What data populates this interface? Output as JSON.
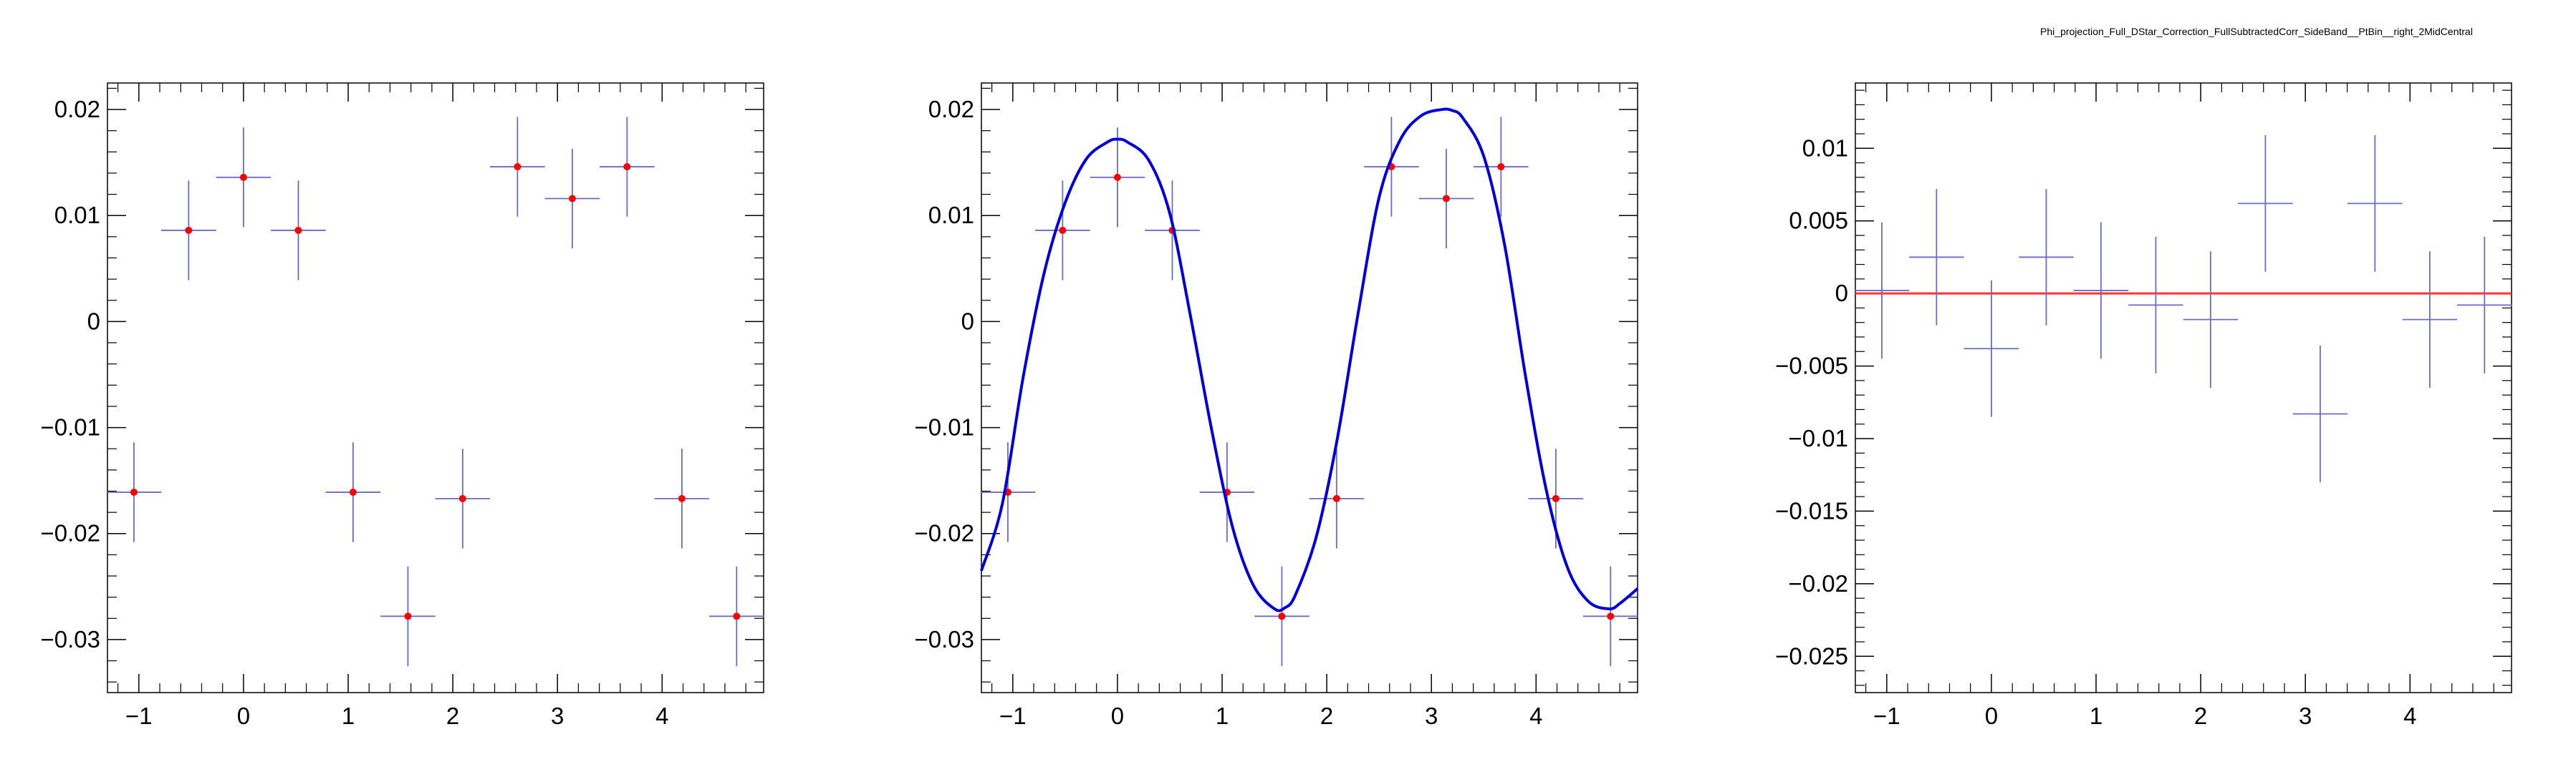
{
  "page_title": "Phi_projection_Full_DStar_Correction_FullSubtractedCorr_SideBand__PtBin__right_2MidCentral",
  "colors": {
    "axis": "#000000",
    "data_marker": "#ff0000",
    "error_bar": "#6a6acc",
    "fit_curve": "#0000dd",
    "zero_line": "#ff3333"
  },
  "chart_data": [
    {
      "type": "scatter",
      "title": "",
      "xlabel": "",
      "ylabel": "",
      "xlim": [
        -1.3,
        4.97
      ],
      "ylim": [
        -0.035,
        0.0225
      ],
      "xticks": [
        -1,
        0,
        1,
        2,
        3,
        4
      ],
      "xtick_labels": [
        "−1",
        "0",
        "1",
        "2",
        "3",
        "4"
      ],
      "yticks": [
        -0.03,
        -0.02,
        -0.01,
        0,
        0.01,
        0.02
      ],
      "ytick_labels": [
        "−0.03",
        "−0.02",
        "−0.01",
        "0",
        "0.01",
        "0.02"
      ],
      "series": [
        {
          "x": [
            -1.047,
            -0.524,
            0.0,
            0.524,
            1.047,
            1.571,
            2.094,
            2.618,
            3.142,
            3.665,
            4.189,
            4.712
          ],
          "y": [
            -0.0161,
            0.0086,
            0.0136,
            0.0086,
            -0.0161,
            -0.0278,
            -0.0167,
            0.0146,
            0.0116,
            0.0146,
            -0.0167,
            -0.0278
          ],
          "xerr": 0.262,
          "yerr": [
            0.0047,
            0.0047,
            0.0047,
            0.0047,
            0.0047,
            0.0047,
            0.0047,
            0.0047,
            0.0047,
            0.0047,
            0.0047,
            0.0047
          ]
        }
      ]
    },
    {
      "type": "scatter",
      "title": "",
      "xlabel": "",
      "ylabel": "",
      "xlim": [
        -1.3,
        4.97
      ],
      "ylim": [
        -0.035,
        0.0225
      ],
      "xticks": [
        -1,
        0,
        1,
        2,
        3,
        4
      ],
      "xtick_labels": [
        "−1",
        "0",
        "1",
        "2",
        "3",
        "4"
      ],
      "yticks": [
        -0.03,
        -0.02,
        -0.01,
        0,
        0.01,
        0.02
      ],
      "ytick_labels": [
        "−0.03",
        "−0.02",
        "−0.01",
        "0",
        "0.01",
        "0.02"
      ],
      "series": [
        {
          "x": [
            -1.047,
            -0.524,
            0.0,
            0.524,
            1.047,
            1.571,
            2.094,
            2.618,
            3.142,
            3.665,
            4.189,
            4.712
          ],
          "y": [
            -0.0161,
            0.0086,
            0.0136,
            0.0086,
            -0.0161,
            -0.0278,
            -0.0167,
            0.0146,
            0.0116,
            0.0146,
            -0.0167,
            -0.0278
          ],
          "xerr": 0.262,
          "yerr": [
            0.0047,
            0.0047,
            0.0047,
            0.0047,
            0.0047,
            0.0047,
            0.0047,
            0.0047,
            0.0047,
            0.0047,
            0.0047,
            0.0047
          ]
        }
      ],
      "fit": {
        "x": [
          -1.3,
          -1.1,
          -0.9,
          -0.7,
          -0.5,
          -0.3,
          -0.1,
          0.0,
          0.1,
          0.3,
          0.5,
          0.7,
          0.9,
          1.1,
          1.3,
          1.5,
          1.6,
          1.7,
          1.9,
          2.1,
          2.3,
          2.5,
          2.7,
          2.9,
          3.1,
          3.2,
          3.3,
          3.5,
          3.7,
          3.9,
          4.1,
          4.3,
          4.5,
          4.7,
          4.8,
          4.97
        ],
        "y": [
          -0.0235,
          -0.0172,
          -0.0052,
          0.0046,
          0.0112,
          0.0153,
          0.0169,
          0.0172,
          0.0169,
          0.0152,
          0.0102,
          0.0004,
          -0.0102,
          -0.0194,
          -0.0249,
          -0.0271,
          -0.027,
          -0.0258,
          -0.0203,
          -0.0111,
          0.0008,
          0.0117,
          0.0171,
          0.0194,
          0.02,
          0.0199,
          0.0192,
          0.0156,
          0.0072,
          -0.0052,
          -0.016,
          -0.0232,
          -0.0264,
          -0.0271,
          -0.0266,
          -0.0252
        ]
      }
    },
    {
      "type": "scatter",
      "title": "",
      "xlabel": "",
      "ylabel": "",
      "xlim": [
        -1.3,
        4.97
      ],
      "ylim": [
        -0.0275,
        0.0145
      ],
      "xticks": [
        -1,
        0,
        1,
        2,
        3,
        4
      ],
      "xtick_labels": [
        "−1",
        "0",
        "1",
        "2",
        "3",
        "4"
      ],
      "yticks": [
        -0.025,
        -0.02,
        -0.015,
        -0.01,
        -0.005,
        0,
        0.005,
        0.01
      ],
      "ytick_labels": [
        "−0.025",
        "−0.02",
        "−0.015",
        "−0.01",
        "−0.005",
        "0",
        "0.005",
        "0.01"
      ],
      "series": [
        {
          "x": [
            -1.047,
            -0.524,
            0.0,
            0.524,
            1.047,
            1.571,
            2.094,
            2.618,
            3.142,
            3.665,
            4.189,
            4.712
          ],
          "y": [
            0.0002,
            0.0025,
            -0.0038,
            0.0025,
            0.0002,
            -0.0008,
            -0.0018,
            0.0062,
            -0.0083,
            0.0062,
            -0.0018,
            -0.0008
          ],
          "xerr": 0.262,
          "yerr": [
            0.0047,
            0.0047,
            0.0047,
            0.0047,
            0.0047,
            0.0047,
            0.0047,
            0.0047,
            0.0047,
            0.0047,
            0.0047,
            0.0047
          ]
        }
      ],
      "reference_line_y": 0
    }
  ]
}
